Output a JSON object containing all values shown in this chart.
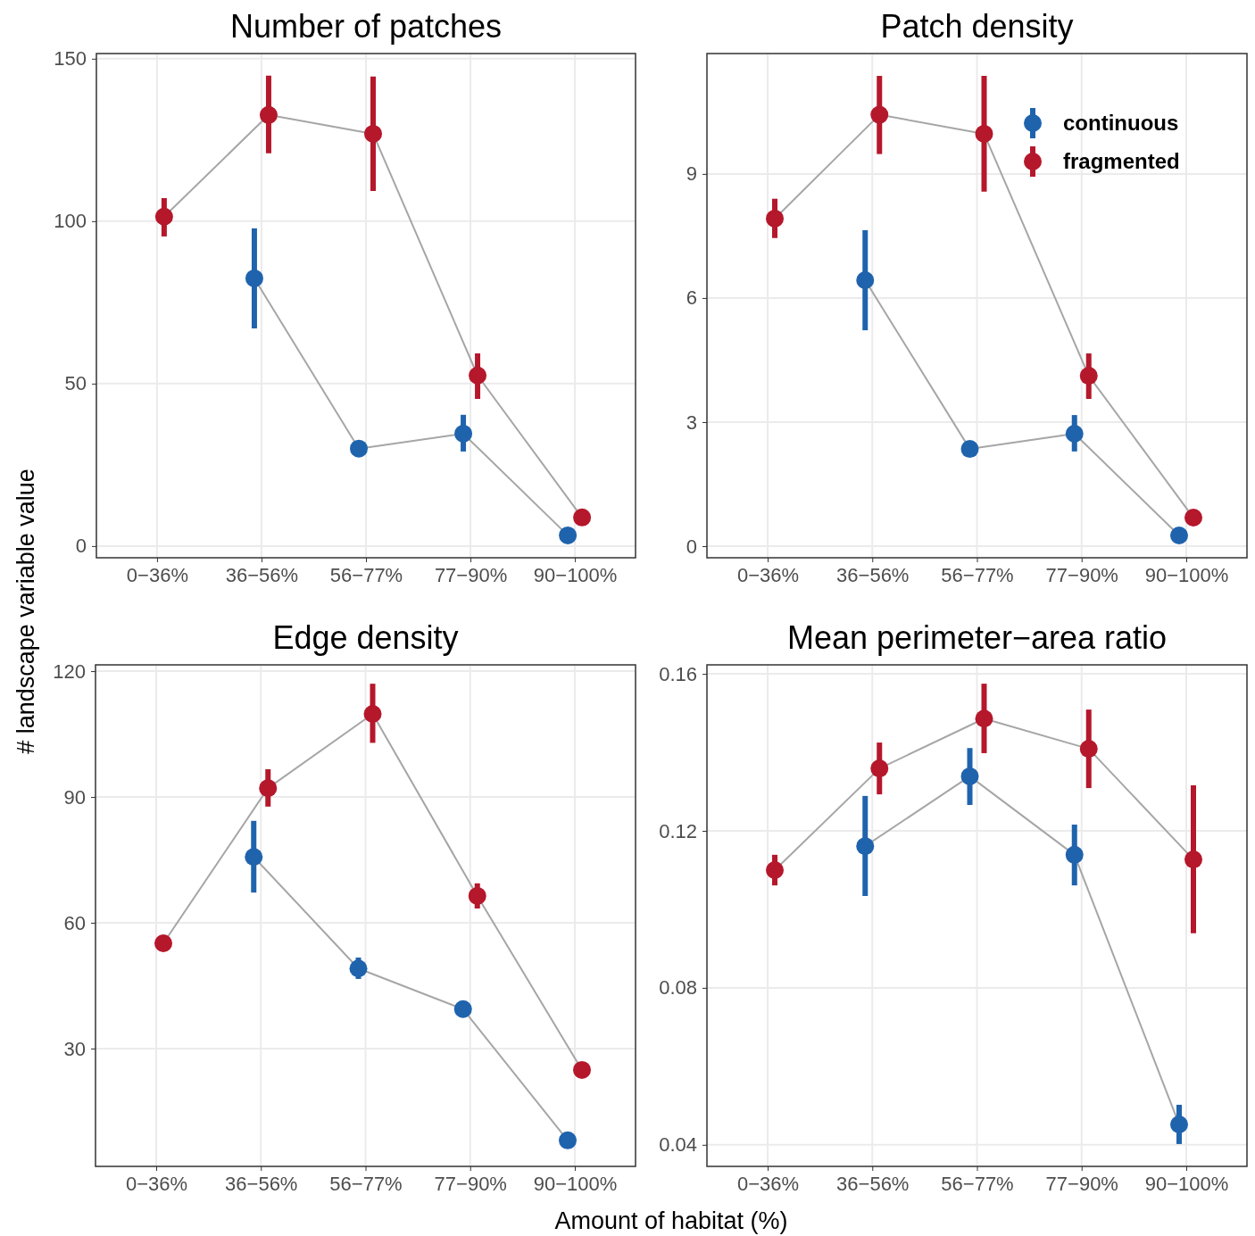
{
  "chart_data": [
    {
      "type": "line",
      "title": "Number of patches",
      "xlabel": "Amount of habitat (%)",
      "ylabel": "# landscape variable value",
      "categories": [
        "0−36%",
        "36−56%",
        "56−77%",
        "77−90%",
        "90−100%"
      ],
      "ylim": [
        -3.6,
        151.6
      ],
      "yticks": [
        0,
        50,
        100,
        150
      ],
      "grid": true,
      "marker": "circle",
      "series": [
        {
          "color": "#1f63ad",
          "values": [
            null,
            82.4,
            30,
            34.6,
            3.3
          ],
          "errors": [
            null,
            [
              67,
              97.8
            ],
            null,
            [
              29.1,
              40.4
            ],
            null
          ]
        },
        {
          "color": "#b5172b",
          "values": [
            101.4,
            132.7,
            126.9,
            52.5,
            8.8
          ],
          "errors": [
            [
              95.3,
              107.1
            ],
            [
              120.9,
              144.8
            ],
            [
              109.3,
              144.5
            ],
            [
              45.3,
              59.3
            ],
            null
          ]
        }
      ]
    },
    {
      "type": "line",
      "title": "Patch density",
      "categories": [
        "0−36%",
        "36−56%",
        "56−77%",
        "77−90%",
        "90−100%"
      ],
      "ylim": [
        -0.28,
        11.91
      ],
      "yticks": [
        0,
        3,
        6,
        9
      ],
      "grid": true,
      "marker": "circle",
      "legend": "top right",
      "series": [
        {
          "name": "continuous",
          "color": "#1f63ad",
          "values": [
            null,
            6.43,
            2.35,
            2.72,
            0.26
          ],
          "errors": [
            null,
            [
              5.22,
              7.64
            ],
            null,
            [
              2.29,
              3.17
            ],
            null
          ]
        },
        {
          "name": "fragmented",
          "color": "#b5172b",
          "values": [
            7.92,
            10.43,
            9.97,
            4.12,
            0.69
          ],
          "errors": [
            [
              7.45,
              8.4
            ],
            [
              9.48,
              11.37
            ],
            [
              8.57,
              11.37
            ],
            [
              3.56,
              4.66
            ],
            null
          ]
        }
      ]
    },
    {
      "type": "line",
      "title": "Edge density",
      "categories": [
        "0−36%",
        "36−56%",
        "56−77%",
        "77−90%",
        "90−100%"
      ],
      "ylim": [
        1.9,
        121.5
      ],
      "yticks": [
        30,
        60,
        90,
        120
      ],
      "grid": true,
      "marker": "circle",
      "series": [
        {
          "color": "#1f63ad",
          "values": [
            null,
            75.7,
            49.1,
            39.4,
            8.1
          ],
          "errors": [
            null,
            [
              67.2,
              84.3
            ],
            [
              46.6,
              51.7
            ],
            null,
            null
          ]
        },
        {
          "color": "#b5172b",
          "values": [
            55.1,
            92.1,
            109.8,
            66.4,
            24.9
          ],
          "errors": [
            null,
            [
              87.7,
              96.6
            ],
            [
              102.9,
              117
            ],
            [
              63.4,
              69.4
            ],
            null
          ]
        }
      ]
    },
    {
      "type": "line",
      "title": "Mean perimeter−area ratio",
      "categories": [
        "0−36%",
        "36−56%",
        "56−77%",
        "77−90%",
        "90−100%"
      ],
      "ylim": [
        0.0345,
        0.1623
      ],
      "yticks": [
        {
          "value": 0.04,
          "label": "0.04"
        },
        {
          "value": 0.08,
          "label": "0.08"
        },
        {
          "value": 0.12,
          "label": "0.12"
        },
        {
          "value": 0.16,
          "label": "0.16"
        }
      ],
      "grid": true,
      "marker": "circle",
      "series": [
        {
          "color": "#1f63ad",
          "values": [
            null,
            0.1161,
            0.1339,
            0.1139,
            0.0452
          ],
          "errors": [
            null,
            [
              0.1034,
              0.1289
            ],
            [
              0.1266,
              0.1411
            ],
            [
              0.1061,
              0.1216
            ],
            [
              0.0402,
              0.0502
            ]
          ]
        },
        {
          "color": "#b5172b",
          "values": [
            0.11,
            0.1359,
            0.1486,
            0.1409,
            0.1127
          ],
          "errors": [
            [
              0.1061,
              0.1139
            ],
            [
              0.1293,
              0.1425
            ],
            [
              0.1398,
              0.1575
            ],
            [
              0.1309,
              0.1509
            ],
            [
              0.0939,
              0.1316
            ]
          ]
        }
      ]
    }
  ]
}
